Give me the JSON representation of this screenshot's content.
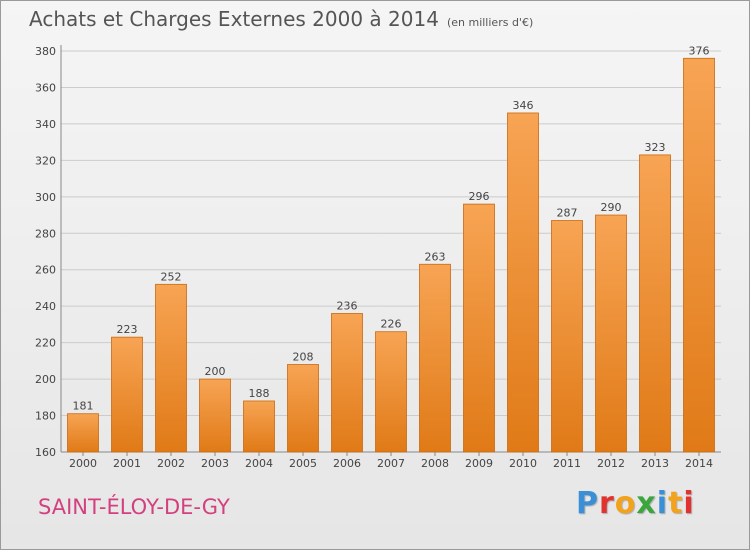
{
  "header": {
    "title": "Achats et Charges Externes 2000 à 2014",
    "subtitle": "(en milliers d'€)"
  },
  "footer": {
    "commune": "SAINT-ÉLOY-DE-GY",
    "brand": "Proxiti"
  },
  "brand_letters": [
    {
      "ch": "P",
      "color": "#3a8fd6"
    },
    {
      "ch": "r",
      "color": "#e2322f"
    },
    {
      "ch": "o",
      "color": "#f2a21b"
    },
    {
      "ch": "x",
      "color": "#3aa63c"
    },
    {
      "ch": "i",
      "color": "#3a8fd6"
    },
    {
      "ch": "t",
      "color": "#f2a21b"
    },
    {
      "ch": "i",
      "color": "#e2322f"
    }
  ],
  "colors": {
    "bar_top": "#f7a454",
    "bar_bottom": "#e07a17",
    "bar_stroke": "#c96a10",
    "grid": "#cccccc",
    "axis_text": "#444444"
  },
  "chart_data": {
    "type": "bar",
    "categories": [
      "2000",
      "2001",
      "2002",
      "2003",
      "2004",
      "2005",
      "2006",
      "2007",
      "2008",
      "2009",
      "2010",
      "2011",
      "2012",
      "2013",
      "2014"
    ],
    "values": [
      181,
      223,
      252,
      200,
      188,
      208,
      236,
      226,
      263,
      296,
      346,
      287,
      290,
      323,
      376
    ],
    "ylim": [
      160,
      380
    ],
    "yticks": [
      160,
      180,
      200,
      220,
      240,
      260,
      280,
      300,
      320,
      340,
      360,
      380
    ],
    "grid": true,
    "xlabel": "",
    "ylabel": ""
  }
}
